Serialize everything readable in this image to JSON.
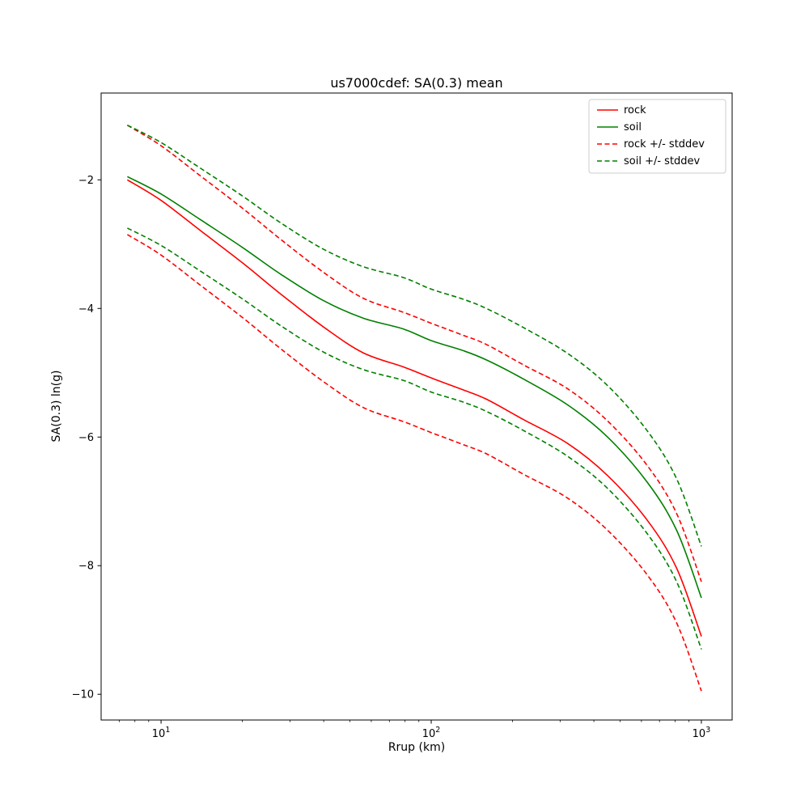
{
  "chart_data": {
    "type": "line",
    "title": "us7000cdef: SA(0.3) mean",
    "xlabel": "Rrup (km)",
    "ylabel": "SA(0.3) ln(g)",
    "xscale": "log",
    "yscale": "linear",
    "xlim": [
      6.0,
      1300
    ],
    "ylim": [
      -10.4,
      -0.65
    ],
    "grid": false,
    "legend_position": "upper right",
    "x": [
      7.5,
      10,
      14,
      20,
      28,
      40,
      56,
      79,
      100,
      130,
      160,
      220,
      320,
      450,
      630,
      810,
      1000
    ],
    "series": [
      {
        "name": "rock",
        "color": "#ff0000",
        "dash": false,
        "values": [
          -2.0,
          -2.32,
          -2.79,
          -3.29,
          -3.79,
          -4.29,
          -4.69,
          -4.91,
          -5.08,
          -5.26,
          -5.41,
          -5.73,
          -6.1,
          -6.6,
          -7.29,
          -8.04,
          -9.1
        ]
      },
      {
        "name": "soil",
        "color": "#008000",
        "dash": false,
        "values": [
          -1.95,
          -2.22,
          -2.62,
          -3.05,
          -3.48,
          -3.88,
          -4.15,
          -4.32,
          -4.5,
          -4.65,
          -4.8,
          -5.1,
          -5.5,
          -6.0,
          -6.7,
          -7.45,
          -8.5
        ]
      },
      {
        "name": "rock + stddev",
        "color": "#ff0000",
        "dash": true,
        "values": [
          -1.15,
          -1.47,
          -1.94,
          -2.44,
          -2.94,
          -3.44,
          -3.84,
          -4.06,
          -4.23,
          -4.41,
          -4.56,
          -4.88,
          -5.25,
          -5.75,
          -6.44,
          -7.19,
          -8.25
        ]
      },
      {
        "name": "rock - stddev",
        "color": "#ff0000",
        "dash": true,
        "values": [
          -2.85,
          -3.17,
          -3.64,
          -4.14,
          -4.64,
          -5.14,
          -5.54,
          -5.76,
          -5.93,
          -6.11,
          -6.26,
          -6.58,
          -6.95,
          -7.45,
          -8.14,
          -8.89,
          -9.95
        ]
      },
      {
        "name": "soil + stddev",
        "color": "#008000",
        "dash": true,
        "values": [
          -1.15,
          -1.42,
          -1.82,
          -2.25,
          -2.68,
          -3.08,
          -3.35,
          -3.52,
          -3.7,
          -3.85,
          -4.0,
          -4.3,
          -4.7,
          -5.2,
          -5.9,
          -6.65,
          -7.7
        ]
      },
      {
        "name": "soil - stddev",
        "color": "#008000",
        "dash": true,
        "values": [
          -2.75,
          -3.02,
          -3.42,
          -3.85,
          -4.28,
          -4.68,
          -4.95,
          -5.12,
          -5.3,
          -5.45,
          -5.6,
          -5.9,
          -6.3,
          -6.8,
          -7.5,
          -8.25,
          -9.3
        ]
      }
    ],
    "legend": [
      {
        "label": "rock",
        "color": "#ff0000",
        "dash": false
      },
      {
        "label": "soil",
        "color": "#008000",
        "dash": false
      },
      {
        "label": "rock +/- stddev",
        "color": "#ff0000",
        "dash": true
      },
      {
        "label": "soil +/- stddev",
        "color": "#008000",
        "dash": true
      }
    ],
    "xticks": [
      {
        "value": 10,
        "base": "10",
        "exp": "1"
      },
      {
        "value": 100,
        "base": "10",
        "exp": "2"
      },
      {
        "value": 1000,
        "base": "10",
        "exp": "3"
      }
    ],
    "yticks": [
      {
        "value": -2,
        "label": "−2"
      },
      {
        "value": -4,
        "label": "−4"
      },
      {
        "value": -6,
        "label": "−6"
      },
      {
        "value": -8,
        "label": "−8"
      },
      {
        "value": -10,
        "label": "−10"
      }
    ],
    "colors": {
      "rock": "#ff0000",
      "soil": "#008000",
      "axes": "#000000",
      "legend_border": "#cccccc"
    }
  }
}
